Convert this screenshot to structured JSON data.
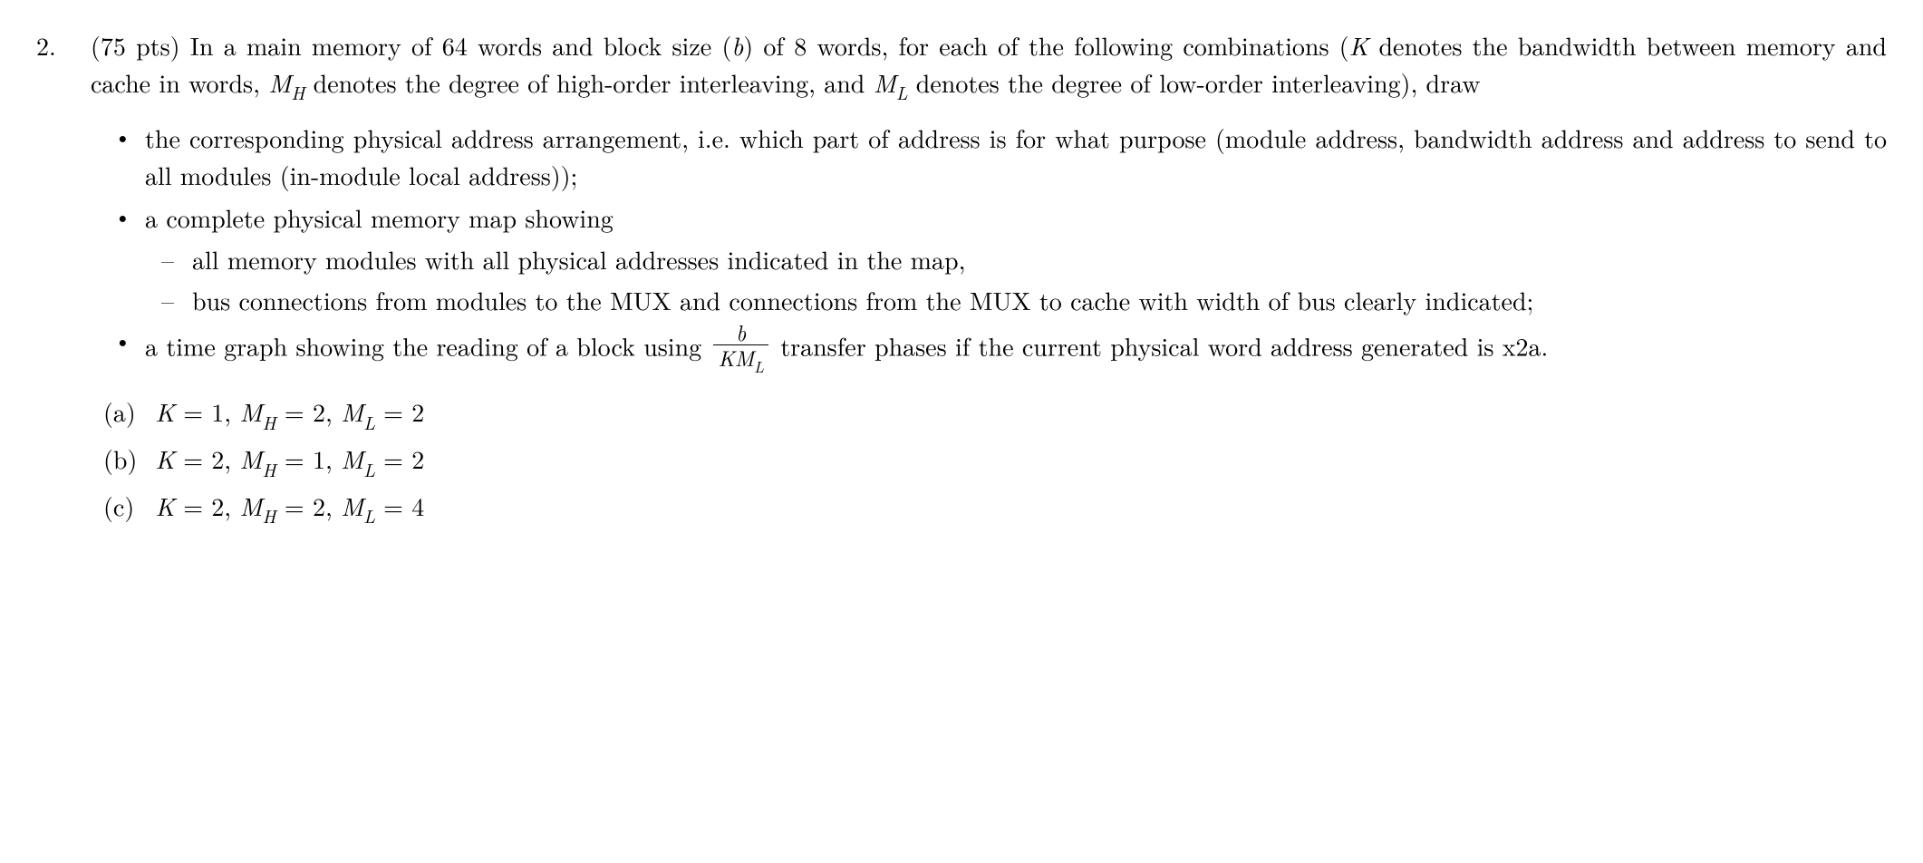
{
  "problem": {
    "number": "2.",
    "points": "(75 pts)",
    "intro_text_1": " In a main memory of 64 words and block size (",
    "var_b": "b",
    "intro_text_2": ") of 8 words, for each of the following combinations (",
    "var_K": "K",
    "intro_text_3": " denotes the bandwidth between memory and cache in words, ",
    "var_MH_M": "M",
    "var_MH_H": "H",
    "intro_text_4": " denotes the degree of high-order interleaving, and ",
    "var_ML_M": "M",
    "var_ML_L": "L",
    "intro_text_5": " denotes the degree of low-order interleaving), draw"
  },
  "bullets": {
    "b1": "the corresponding physical address arrangement, i.e. which part of address is for what purpose (module address, bandwidth address and address to send to all modules (in-module local address));",
    "b2": "a complete physical memory map showing",
    "b2_dash1": "all memory modules with all physical addresses indicated in the map,",
    "b2_dash2": "bus connections from modules to the MUX and connections from the MUX to cache with width of bus clearly indicated;",
    "b3_pre": "a time graph showing the reading of a block using ",
    "b3_frac_num": "b",
    "b3_frac_den_K": "K",
    "b3_frac_den_M": "M",
    "b3_frac_den_L": "L",
    "b3_post": " transfer phases if the current physical word address generated is x2a."
  },
  "subparts": {
    "a": {
      "label": "(a)",
      "K": "K",
      "eq1": " = 1, ",
      "MH_M": "M",
      "MH_H": "H",
      "eq2": " = 2, ",
      "ML_M": "M",
      "ML_L": "L",
      "eq3": " = 2"
    },
    "b": {
      "label": "(b)",
      "K": "K",
      "eq1": " = 2, ",
      "MH_M": "M",
      "MH_H": "H",
      "eq2": " = 1, ",
      "ML_M": "M",
      "ML_L": "L",
      "eq3": " = 2"
    },
    "c": {
      "label": "(c)",
      "K": "K",
      "eq1": " = 2, ",
      "MH_M": "M",
      "MH_H": "H",
      "eq2": " = 2, ",
      "ML_M": "M",
      "ML_L": "L",
      "eq3": " = 4"
    }
  }
}
